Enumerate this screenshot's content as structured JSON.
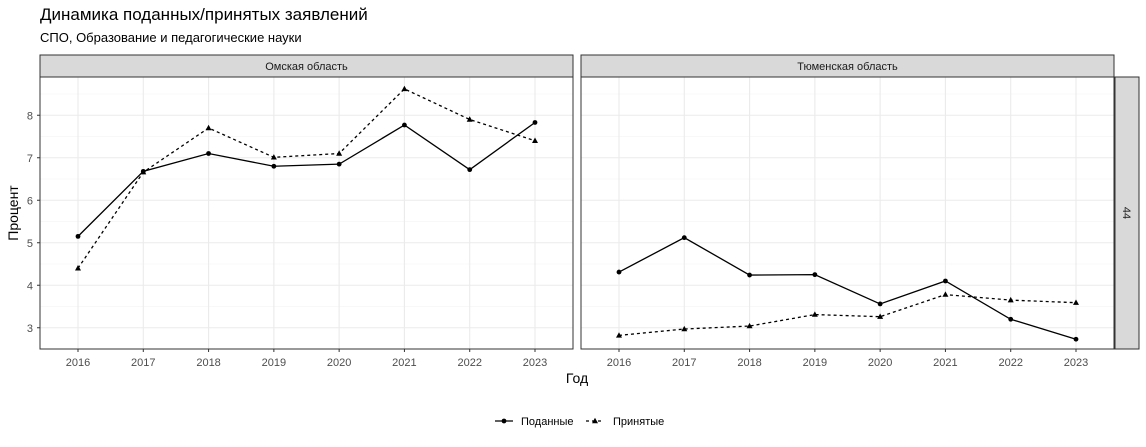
{
  "chart_data": {
    "type": "line",
    "title": "Динамика поданных/принятых заявлений",
    "subtitle": "СПО, Образование и педагогические науки",
    "xlabel": "Год",
    "ylabel": "Процент",
    "x": [
      "2016",
      "2017",
      "2018",
      "2019",
      "2020",
      "2021",
      "2022",
      "2023"
    ],
    "ylim": [
      2.5,
      8.9
    ],
    "yticks": [
      "3",
      "4",
      "5",
      "6",
      "7",
      "8"
    ],
    "strip_right": "44",
    "legend": {
      "position": "bottom"
    },
    "series_names": [
      "Поданные",
      "Принятые"
    ],
    "panels": [
      {
        "facet": "Омская область",
        "series": [
          {
            "name": "Поданные",
            "linetype": "solid",
            "shape": "circle",
            "values": [
              5.15,
              6.68,
              7.1,
              6.8,
              6.85,
              7.77,
              6.72,
              7.83
            ]
          },
          {
            "name": "Принятые",
            "linetype": "dashed",
            "shape": "triangle",
            "values": [
              4.4,
              6.66,
              7.7,
              7.01,
              7.1,
              8.62,
              7.9,
              7.4
            ]
          }
        ]
      },
      {
        "facet": "Тюменская область",
        "series": [
          {
            "name": "Поданные",
            "linetype": "solid",
            "shape": "circle",
            "values": [
              4.31,
              5.12,
              4.24,
              4.25,
              3.56,
              4.1,
              3.2,
              2.73
            ]
          },
          {
            "name": "Принятые",
            "linetype": "dashed",
            "shape": "triangle",
            "values": [
              2.82,
              2.97,
              3.04,
              3.31,
              3.26,
              3.78,
              3.65,
              3.59
            ]
          }
        ]
      }
    ]
  }
}
